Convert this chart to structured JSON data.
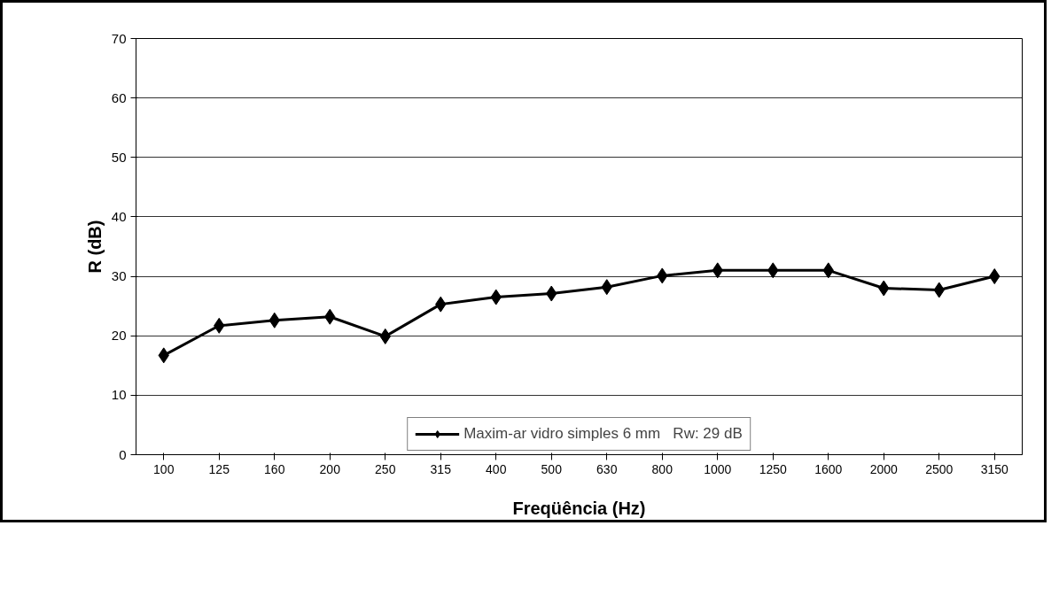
{
  "chart_data": {
    "type": "line",
    "xlabel": "Freqüência (Hz)",
    "ylabel": "R (dB)",
    "categories": [
      "100",
      "125",
      "160",
      "200",
      "250",
      "315",
      "400",
      "500",
      "630",
      "800",
      "1000",
      "1250",
      "1600",
      "2000",
      "2500",
      "3150"
    ],
    "series": [
      {
        "name": "Maxim-ar vidro simples 6 mm   Rw: 29 dB",
        "color": "#000000",
        "values": [
          16.7,
          21.7,
          22.6,
          23.2,
          19.9,
          25.3,
          26.5,
          27.1,
          28.2,
          30.1,
          31.0,
          31.0,
          31.0,
          28.0,
          27.7,
          30.0
        ]
      }
    ],
    "ylim": [
      0,
      70
    ],
    "yticks": [
      0,
      10,
      20,
      30,
      40,
      50,
      60,
      70
    ],
    "grid": "y",
    "legend": "bottom",
    "marker": "diamond",
    "line_style": "solid"
  }
}
